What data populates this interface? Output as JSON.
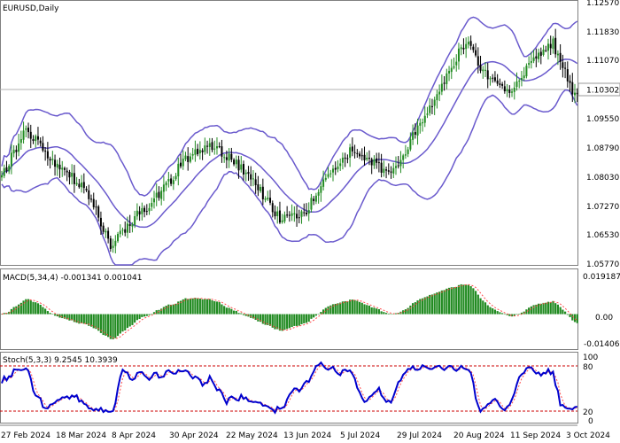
{
  "chart_data": [
    {
      "type": "candlestick",
      "title": "EURUSD,Daily",
      "symbol": "EURUSD",
      "timeframe": "Daily",
      "ylim": [
        1.0563,
        1.1275
      ],
      "y_ticks": [
        "1.12570",
        "1.11830",
        "1.11070",
        "1.10302",
        "1.09550",
        "1.08790",
        "1.08030",
        "1.07270",
        "1.06530",
        "1.05770"
      ],
      "current_price": "1.10302",
      "indicator": "Bollinger Bands",
      "x_ticks": [
        "27 Feb 2024",
        "18 Mar 2024",
        "8 Apr 2024",
        "30 Apr 2024",
        "22 May 2024",
        "13 Jun 2024",
        "5 Jul 2024",
        "29 Jul 2024",
        "20 Aug 2024",
        "11 Sep 2024",
        "3 Oct 2024"
      ],
      "anchor_closes": [
        [
          0,
          1.08
        ],
        [
          10,
          1.0935
        ],
        [
          20,
          1.084
        ],
        [
          35,
          1.077
        ],
        [
          45,
          1.061
        ],
        [
          55,
          1.069
        ],
        [
          65,
          1.075
        ],
        [
          75,
          1.084
        ],
        [
          85,
          1.089
        ],
        [
          95,
          1.085
        ],
        [
          105,
          1.078
        ],
        [
          115,
          1.069
        ],
        [
          125,
          1.07
        ],
        [
          135,
          1.08
        ],
        [
          145,
          1.088
        ],
        [
          152,
          1.085
        ],
        [
          160,
          1.081
        ],
        [
          166,
          1.085
        ],
        [
          172,
          1.094
        ],
        [
          178,
          1.1
        ],
        [
          186,
          1.11
        ],
        [
          192,
          1.1165
        ],
        [
          198,
          1.11
        ],
        [
          204,
          1.105
        ],
        [
          210,
          1.102
        ],
        [
          216,
          1.108
        ],
        [
          222,
          1.113
        ],
        [
          228,
          1.116
        ],
        [
          232,
          1.11
        ],
        [
          236,
          1.103
        ],
        [
          238,
          1.103
        ]
      ],
      "colors": {
        "up": "#228b22",
        "down": "#000000",
        "bands": "#6a5acd",
        "price_line": "#b0b0b0"
      }
    },
    {
      "type": "bar",
      "title": "MACD(5,34,4) -0.001341 0.001041",
      "indicator": "MACD",
      "parameters": "5,34,4",
      "main_value": "-0.001341",
      "signal_value": "0.001041",
      "y_ticks": [
        "0.019187",
        "0.00",
        "-0.014065"
      ],
      "ylim": [
        -0.016,
        0.0205
      ],
      "colors": {
        "histogram": "#228b22",
        "signal": "#ff4d4d"
      }
    },
    {
      "type": "line",
      "title": "Stoch(5,3,3) 9.2545 10.3939",
      "indicator": "Stochastic",
      "parameters": "5,3,3",
      "main_value": "9.2545",
      "signal_value": "10.3939",
      "y_ticks": [
        "100",
        "80",
        "20",
        "0"
      ],
      "levels": [
        80,
        20
      ],
      "ylim": [
        0,
        100
      ],
      "colors": {
        "main": "#0000cd",
        "signal": "#ff4d4d",
        "levels": "#cc0000"
      }
    }
  ]
}
